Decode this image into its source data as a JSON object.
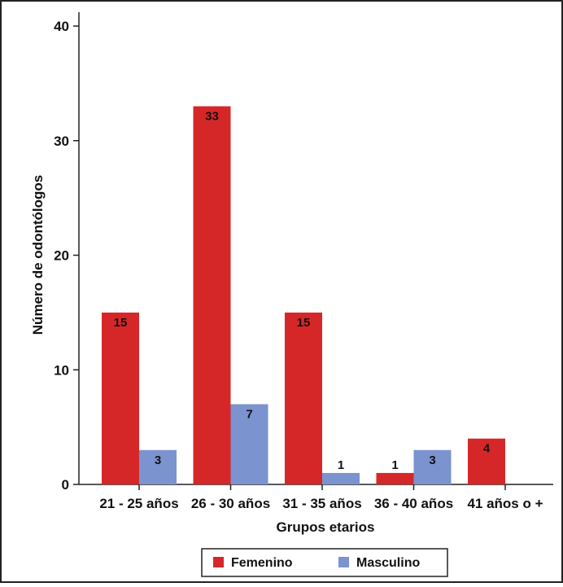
{
  "chart_data": {
    "type": "bar",
    "categories": [
      "21 - 25 años",
      "26 - 30 años",
      "31 - 35 años",
      "36 - 40 años",
      "41 años o +"
    ],
    "series": [
      {
        "name": "Femenino",
        "values": [
          15,
          33,
          15,
          1,
          4
        ],
        "color": "#d62728"
      },
      {
        "name": "Masculino",
        "values": [
          3,
          7,
          1,
          3,
          null
        ],
        "color": "#7b93cf"
      }
    ],
    "title": "",
    "xlabel": "Grupos etarios",
    "ylabel": "Número de odontólogos",
    "ylim": [
      0,
      40
    ],
    "yticks": [
      "0",
      "10",
      "20",
      "30",
      "40"
    ],
    "grid": false,
    "legend_position": "bottom-center"
  }
}
